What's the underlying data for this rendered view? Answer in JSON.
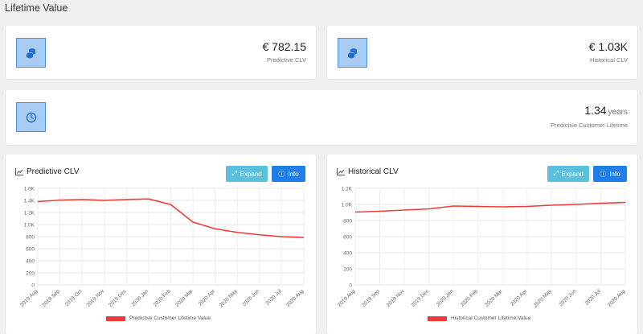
{
  "page": {
    "title": "Lifetime Value"
  },
  "stats": {
    "predictive": {
      "value": "€ 782.15",
      "label": "Predictive CLV",
      "icon": "coins-icon"
    },
    "historical": {
      "value": "€ 1.03K",
      "label": "Historical CLV",
      "icon": "coins-icon"
    },
    "lifetime": {
      "value": "1.34",
      "unit": "years",
      "label": "Predictive Customer Lifetime",
      "icon": "clock-icon"
    }
  },
  "buttons": {
    "expand": "Expand",
    "info": "Info"
  },
  "colors": {
    "line": "#f03a3a",
    "icon_bg": "#a9ccf5",
    "icon_border": "#4a8fe0",
    "expand": "#5bc0de",
    "info": "#1f7fe8"
  },
  "charts": {
    "predictive": {
      "title": "Predictive CLV",
      "legend": "Predictive Customer Lifetime Value",
      "chart_data": {
        "type": "line",
        "x": [
          "2019 Aug",
          "2019 Sep",
          "2019 Oct",
          "2019 Nov",
          "2019 Dec",
          "2020 Jan",
          "2020 Feb",
          "2020 Mar",
          "2020 Apr",
          "2020 May",
          "2020 Jun",
          "2020 Jul",
          "2020 Aug"
        ],
        "series": [
          {
            "name": "Predictive Customer Lifetime Value",
            "values": [
              1380,
              1405,
              1415,
              1400,
              1415,
              1425,
              1330,
              1040,
              930,
              870,
              830,
              800,
              785
            ]
          }
        ],
        "ylim": [
          0,
          1600
        ],
        "yticks": [
          "0",
          "200",
          "400",
          "600",
          "800",
          "1.0K",
          "1.2K",
          "1.4K",
          "1.6K"
        ],
        "grid": true,
        "legend_position": "bottom"
      }
    },
    "historical": {
      "title": "Historical CLV",
      "legend": "Historical Customer Lifetime Value",
      "chart_data": {
        "type": "line",
        "x": [
          "2019 Aug",
          "2019 Sep",
          "2019 Nov",
          "2019 Dec",
          "2020 Jan",
          "2020 Feb",
          "2020 Mar",
          "2020 Apr",
          "2020 May",
          "2020 Jun",
          "2020 Jul",
          "2020 Aug"
        ],
        "series": [
          {
            "name": "Historical Customer Lifetime Value",
            "values": [
              905,
              915,
              930,
              945,
              980,
              975,
              970,
              975,
              990,
              1000,
              1015,
              1025
            ]
          }
        ],
        "ylim": [
          0,
          1200
        ],
        "yticks": [
          "0",
          "200",
          "400",
          "600",
          "800",
          "1.0K",
          "1.2K"
        ],
        "grid": true,
        "legend_position": "bottom"
      }
    }
  }
}
